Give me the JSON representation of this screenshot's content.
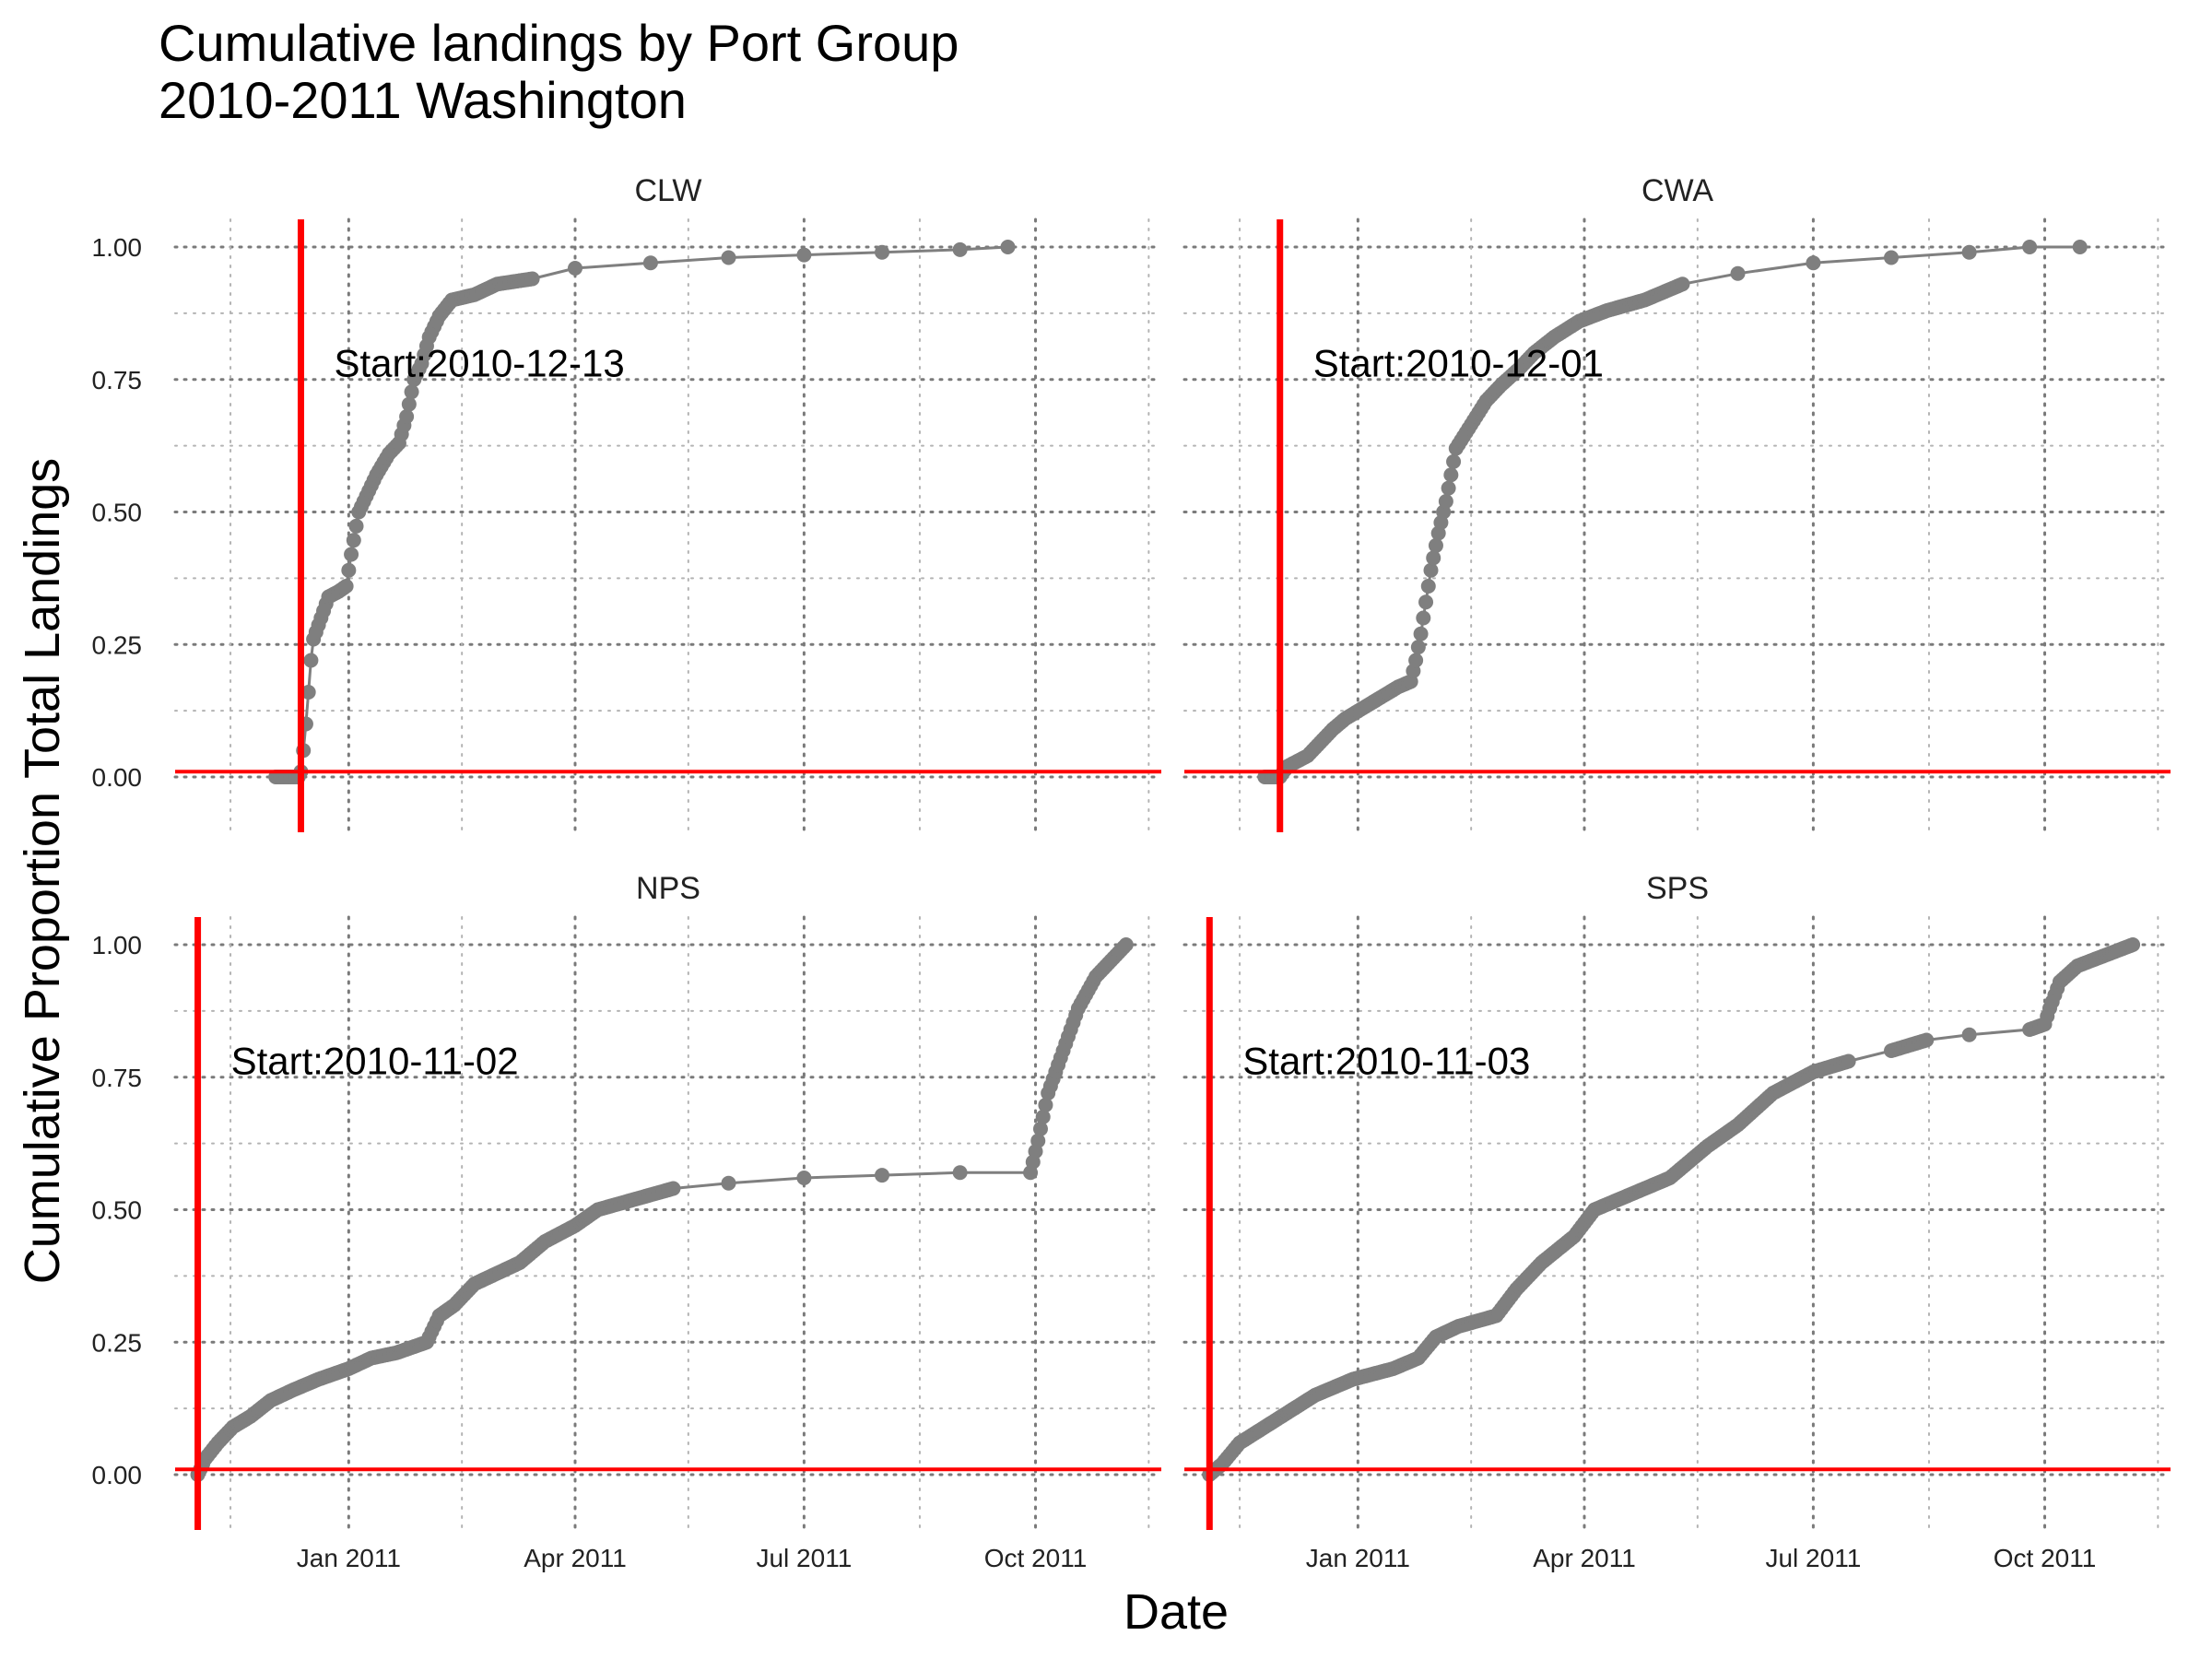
{
  "title": [
    "Cumulative landings by Port Group",
    "2010-2011 Washington"
  ],
  "chart_data": {
    "type": "line",
    "title": "Cumulative landings by Port Group\n2010-2011 Washington",
    "xlabel": "Date",
    "ylabel": "Cumulative Proportion Total Landings",
    "xlim": [
      "2010-10-24",
      "2011-11-20"
    ],
    "ylim": [
      0,
      1
    ],
    "x_ticks": [
      {
        "date": "2011-01-01",
        "label": "Jan 2011"
      },
      {
        "date": "2011-04-01",
        "label": "Apr 2011"
      },
      {
        "date": "2011-07-01",
        "label": "Jul 2011"
      },
      {
        "date": "2011-10-01",
        "label": "Oct 2011"
      }
    ],
    "y_ticks": [
      0,
      0.25,
      0.5,
      0.75,
      1
    ],
    "y_tick_labels": [
      "0.00",
      "0.25",
      "0.50",
      "0.75",
      "1.00"
    ],
    "grid": "dotted",
    "line_color": "#7f7f7f",
    "reference_color": "#ff0000",
    "horizontal_reference_y": 0.01,
    "facets": [
      {
        "name": "CLW",
        "start_date": "2010-12-13",
        "start_label": "Start:2010-12-13",
        "points": [
          [
            "2010-12-03",
            0.0
          ],
          [
            "2010-12-12",
            0.0
          ],
          [
            "2010-12-13",
            0.01
          ],
          [
            "2010-12-14",
            0.05
          ],
          [
            "2010-12-15",
            0.1
          ],
          [
            "2010-12-16",
            0.16
          ],
          [
            "2010-12-17",
            0.22
          ],
          [
            "2010-12-18",
            0.26
          ],
          [
            "2010-12-21",
            0.3
          ],
          [
            "2010-12-24",
            0.34
          ],
          [
            "2010-12-28",
            0.35
          ],
          [
            "2010-12-31",
            0.36
          ],
          [
            "2011-01-02",
            0.42
          ],
          [
            "2011-01-05",
            0.5
          ],
          [
            "2011-01-08",
            0.53
          ],
          [
            "2011-01-12",
            0.57
          ],
          [
            "2011-01-17",
            0.61
          ],
          [
            "2011-01-21",
            0.63
          ],
          [
            "2011-01-24",
            0.68
          ],
          [
            "2011-01-27",
            0.75
          ],
          [
            "2011-01-30",
            0.78
          ],
          [
            "2011-02-02",
            0.83
          ],
          [
            "2011-02-06",
            0.87
          ],
          [
            "2011-02-11",
            0.9
          ],
          [
            "2011-02-20",
            0.91
          ],
          [
            "2011-03-01",
            0.93
          ],
          [
            "2011-03-15",
            0.94
          ],
          [
            "2011-04-01",
            0.96
          ],
          [
            "2011-05-01",
            0.97
          ],
          [
            "2011-06-01",
            0.98
          ],
          [
            "2011-07-01",
            0.985
          ],
          [
            "2011-08-01",
            0.99
          ],
          [
            "2011-09-01",
            0.995
          ],
          [
            "2011-09-20",
            1.0
          ]
        ]
      },
      {
        "name": "CWA",
        "start_date": "2010-12-01",
        "start_label": "Start:2010-12-01",
        "points": [
          [
            "2010-11-25",
            0.0
          ],
          [
            "2010-12-01",
            0.0
          ],
          [
            "2010-12-04",
            0.02
          ],
          [
            "2010-12-08",
            0.03
          ],
          [
            "2010-12-12",
            0.04
          ],
          [
            "2010-12-16",
            0.06
          ],
          [
            "2010-12-22",
            0.09
          ],
          [
            "2010-12-27",
            0.11
          ],
          [
            "2011-01-03",
            0.13
          ],
          [
            "2011-01-10",
            0.15
          ],
          [
            "2011-01-17",
            0.17
          ],
          [
            "2011-01-22",
            0.18
          ],
          [
            "2011-01-24",
            0.22
          ],
          [
            "2011-01-26",
            0.27
          ],
          [
            "2011-01-28",
            0.33
          ],
          [
            "2011-01-30",
            0.39
          ],
          [
            "2011-02-02",
            0.46
          ],
          [
            "2011-02-05",
            0.52
          ],
          [
            "2011-02-07",
            0.57
          ],
          [
            "2011-02-09",
            0.62
          ],
          [
            "2011-02-13",
            0.65
          ],
          [
            "2011-02-17",
            0.68
          ],
          [
            "2011-02-21",
            0.71
          ],
          [
            "2011-02-27",
            0.74
          ],
          [
            "2011-03-06",
            0.77
          ],
          [
            "2011-03-12",
            0.8
          ],
          [
            "2011-03-20",
            0.83
          ],
          [
            "2011-03-30",
            0.86
          ],
          [
            "2011-04-10",
            0.88
          ],
          [
            "2011-04-25",
            0.9
          ],
          [
            "2011-05-10",
            0.93
          ],
          [
            "2011-06-01",
            0.95
          ],
          [
            "2011-07-01",
            0.97
          ],
          [
            "2011-08-01",
            0.98
          ],
          [
            "2011-09-01",
            0.99
          ],
          [
            "2011-09-25",
            1.0
          ],
          [
            "2011-10-15",
            1.0
          ]
        ]
      },
      {
        "name": "NPS",
        "start_date": "2010-11-02",
        "start_label": "Start:2010-11-02",
        "points": [
          [
            "2010-11-02",
            0.0
          ],
          [
            "2010-11-05",
            0.03
          ],
          [
            "2010-11-10",
            0.06
          ],
          [
            "2010-11-16",
            0.09
          ],
          [
            "2010-11-23",
            0.11
          ],
          [
            "2010-12-01",
            0.14
          ],
          [
            "2010-12-10",
            0.16
          ],
          [
            "2010-12-20",
            0.18
          ],
          [
            "2011-01-01",
            0.2
          ],
          [
            "2011-01-10",
            0.22
          ],
          [
            "2011-01-20",
            0.23
          ],
          [
            "2011-02-01",
            0.25
          ],
          [
            "2011-02-06",
            0.3
          ],
          [
            "2011-02-12",
            0.32
          ],
          [
            "2011-02-20",
            0.36
          ],
          [
            "2011-03-01",
            0.38
          ],
          [
            "2011-03-10",
            0.4
          ],
          [
            "2011-03-20",
            0.44
          ],
          [
            "2011-04-01",
            0.47
          ],
          [
            "2011-04-10",
            0.5
          ],
          [
            "2011-04-25",
            0.52
          ],
          [
            "2011-05-10",
            0.54
          ],
          [
            "2011-06-01",
            0.55
          ],
          [
            "2011-07-01",
            0.56
          ],
          [
            "2011-08-01",
            0.565
          ],
          [
            "2011-09-01",
            0.57
          ],
          [
            "2011-09-29",
            0.57
          ],
          [
            "2011-10-02",
            0.63
          ],
          [
            "2011-10-06",
            0.72
          ],
          [
            "2011-10-12",
            0.8
          ],
          [
            "2011-10-18",
            0.88
          ],
          [
            "2011-10-25",
            0.94
          ],
          [
            "2011-11-02",
            0.98
          ],
          [
            "2011-11-06",
            1.0
          ]
        ]
      },
      {
        "name": "SPS",
        "start_date": "2010-11-03",
        "start_label": "Start:2010-11-03",
        "points": [
          [
            "2010-11-03",
            0.0
          ],
          [
            "2010-11-08",
            0.02
          ],
          [
            "2010-11-15",
            0.06
          ],
          [
            "2010-11-25",
            0.09
          ],
          [
            "2010-12-05",
            0.12
          ],
          [
            "2010-12-15",
            0.15
          ],
          [
            "2010-12-30",
            0.18
          ],
          [
            "2011-01-15",
            0.2
          ],
          [
            "2011-01-25",
            0.22
          ],
          [
            "2011-02-01",
            0.26
          ],
          [
            "2011-02-10",
            0.28
          ],
          [
            "2011-02-25",
            0.3
          ],
          [
            "2011-03-05",
            0.35
          ],
          [
            "2011-03-15",
            0.4
          ],
          [
            "2011-03-28",
            0.45
          ],
          [
            "2011-04-05",
            0.5
          ],
          [
            "2011-04-20",
            0.53
          ],
          [
            "2011-05-05",
            0.56
          ],
          [
            "2011-05-20",
            0.62
          ],
          [
            "2011-06-01",
            0.66
          ],
          [
            "2011-06-15",
            0.72
          ],
          [
            "2011-07-01",
            0.76
          ],
          [
            "2011-07-15",
            0.78
          ],
          [
            "2011-08-01",
            0.8
          ],
          [
            "2011-08-15",
            0.82
          ],
          [
            "2011-09-01",
            0.83
          ],
          [
            "2011-09-25",
            0.84
          ],
          [
            "2011-10-01",
            0.85
          ],
          [
            "2011-10-03",
            0.88
          ],
          [
            "2011-10-07",
            0.93
          ],
          [
            "2011-10-14",
            0.96
          ],
          [
            "2011-10-25",
            0.98
          ],
          [
            "2011-11-05",
            1.0
          ]
        ]
      }
    ]
  }
}
